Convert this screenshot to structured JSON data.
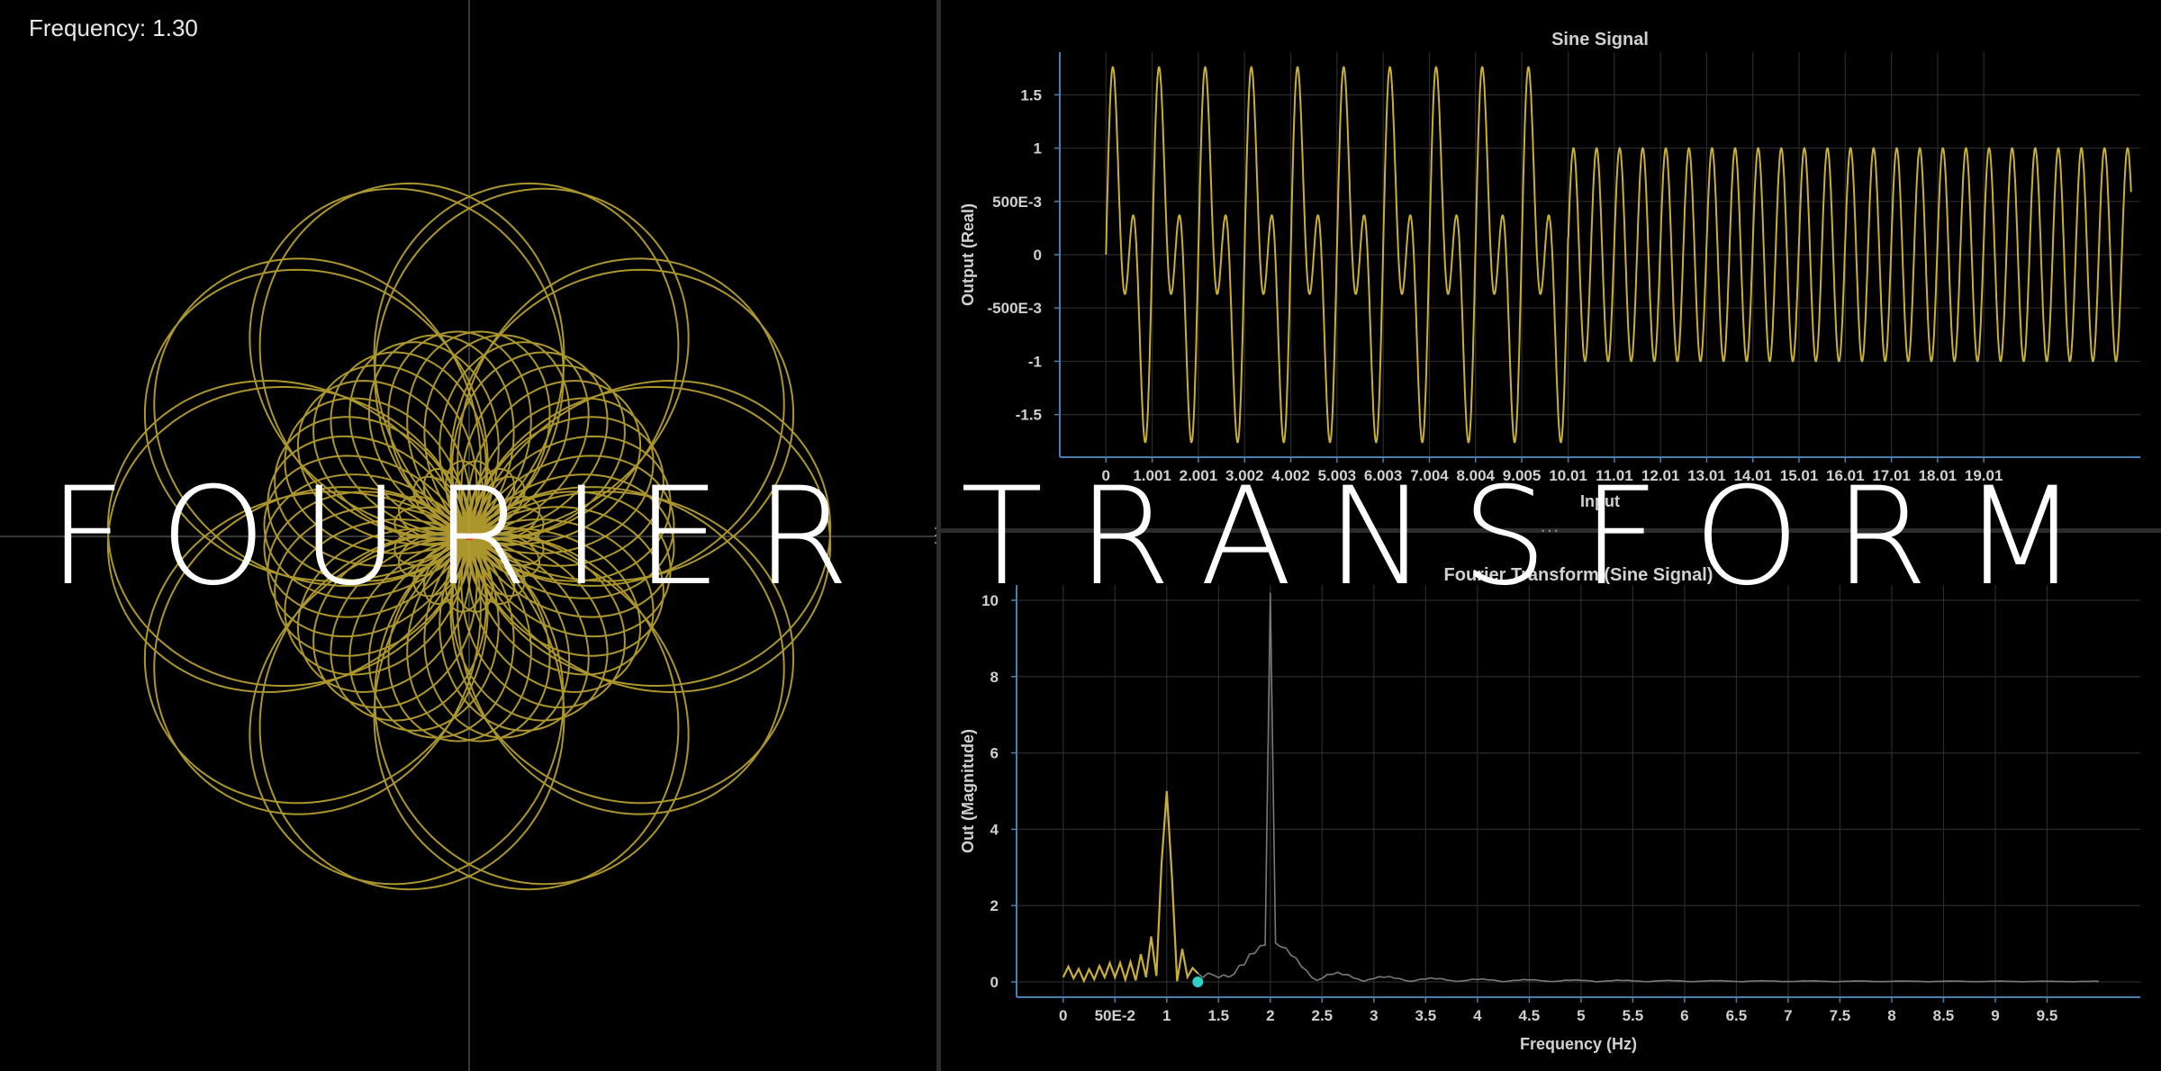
{
  "readout": {
    "frequency_text": "Frequency: 1.30"
  },
  "overlay": {
    "title": "FOURIER TRANSFORM"
  },
  "colors": {
    "signal": "#c9b035",
    "marker": "#2fd0c8",
    "center": "#e03a2a",
    "grid": "#2a2a2a",
    "axis": "#4a7fb0"
  },
  "winding": {
    "frequency": 1.3
  },
  "chart_data": [
    {
      "type": "line",
      "title": "Sine Signal",
      "xlabel": "Input",
      "ylabel": "Output (Real)",
      "xlim": [
        -1,
        22.4
      ],
      "ylim": [
        -1.9,
        1.9
      ],
      "x_ticks": [
        0,
        1.001,
        2.001,
        3.002,
        4.002,
        5.003,
        6.003,
        7.004,
        8.004,
        9.005,
        10.01,
        11.01,
        12.01,
        13.01,
        14.01,
        15.01,
        16.01,
        17.01,
        18.01,
        19.01
      ],
      "x_tick_labels": [
        "0",
        "1.001",
        "2.001",
        "3.002",
        "4.002",
        "5.003",
        "6.003",
        "7.004",
        "8.004",
        "9.005",
        "10.01",
        "11.01",
        "12.01",
        "13.01",
        "14.01",
        "15.01",
        "16.01",
        "17.01",
        "18.01",
        "19.01"
      ],
      "y_ticks": [
        -1.5,
        -1,
        -0.5,
        0,
        0.5,
        1,
        1.5
      ],
      "y_tick_labels": [
        "-1.5",
        "-1",
        "-500E-3",
        "0",
        "500E-3",
        "1",
        "1.5"
      ],
      "grid": true,
      "series": [
        {
          "segment": "0 to 10.01",
          "expression": "sin(2π·1·x) + sin(2π·2·x)",
          "x_range": [
            0,
            10.01
          ]
        },
        {
          "segment": "10.01 to 22.2",
          "expression": "sin(2π·2·x)",
          "x_range": [
            10.01,
            22.2
          ]
        }
      ]
    },
    {
      "type": "line",
      "title": "Fourier Transform (Sine Signal)",
      "xlabel": "Frequency (Hz)",
      "ylabel": "Out (Magnitude)",
      "xlim": [
        -0.45,
        10.4
      ],
      "ylim": [
        -0.4,
        10.4
      ],
      "x_ticks": [
        0,
        0.5,
        1,
        1.5,
        2,
        2.5,
        3,
        3.5,
        4,
        4.5,
        5,
        5.5,
        6,
        6.5,
        7,
        7.5,
        8,
        8.5,
        9,
        9.5
      ],
      "x_tick_labels": [
        "0",
        "50E-2",
        "1",
        "1.5",
        "2",
        "2.5",
        "3",
        "3.5",
        "4",
        "4.5",
        "5",
        "5.5",
        "6",
        "6.5",
        "7",
        "7.5",
        "8",
        "8.5",
        "9",
        "9.5"
      ],
      "y_ticks": [
        0,
        2,
        4,
        6,
        8,
        10
      ],
      "y_tick_labels": [
        "0",
        "2",
        "4",
        "6",
        "8",
        "10"
      ],
      "grid": true,
      "peaks": [
        {
          "frequency": 1.0,
          "magnitude": 5.0
        },
        {
          "frequency": 2.0,
          "magnitude": 10.2
        }
      ],
      "current_frequency": 1.3,
      "current_magnitude": 0.0,
      "highlighted_range": [
        0,
        1.3
      ]
    }
  ]
}
